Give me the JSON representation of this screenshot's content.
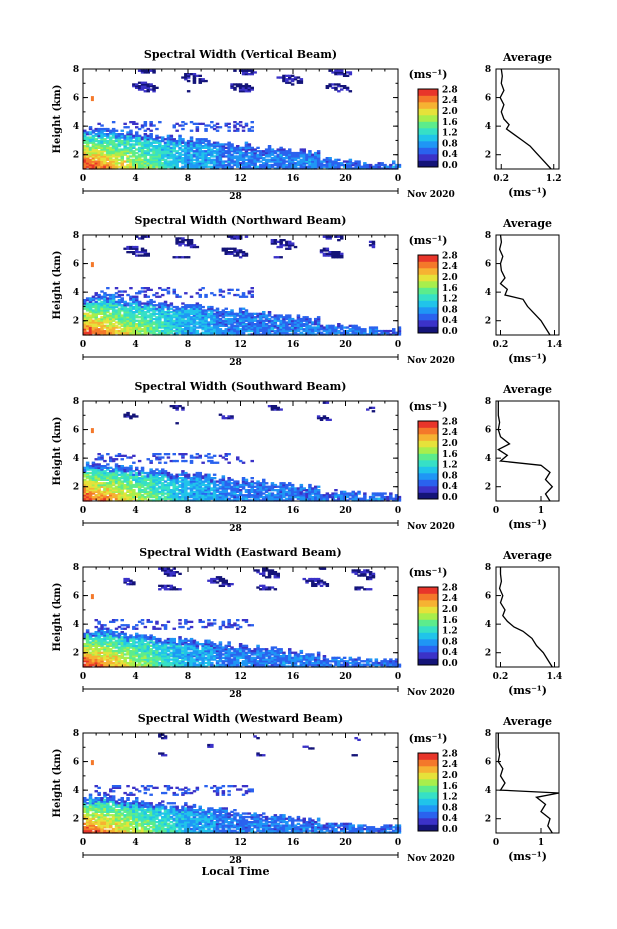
{
  "figure": {
    "xlabel": "Local Time",
    "date_label": "Nov 2020",
    "day_label": "28"
  },
  "colorbar": {
    "unit": "(ms⁻¹)",
    "ticks": [
      "0.0",
      "0.4",
      "0.8",
      "1.2",
      "1.6",
      "2.0",
      "2.4",
      "2.8"
    ],
    "colors": [
      "#141478",
      "#3b32c8",
      "#2a62ee",
      "#1f96f5",
      "#20c4ea",
      "#36e0c6",
      "#5cec8c",
      "#a8ee4c",
      "#e6e23a",
      "#f6b232",
      "#f4782a",
      "#e8352a"
    ]
  },
  "chart_data": [
    {
      "type": "heatmap",
      "title": "Spectral Width (Vertical Beam)",
      "ylabel": "Height (km)",
      "xlim": [
        0,
        24
      ],
      "ylim": [
        1,
        8
      ],
      "xticks": [
        "0",
        "4",
        "8",
        "12",
        "16",
        "20",
        "0"
      ],
      "yticks": [
        "2",
        "4",
        "6",
        "8"
      ],
      "value_range": [
        0.0,
        2.8
      ],
      "profile": {
        "title": "Average",
        "xlabel": "(ms⁻¹)",
        "xticks": [
          "0.2",
          "1.2"
        ],
        "xlim": [
          0.1,
          1.3
        ],
        "ylim": [
          1,
          8
        ],
        "yticks": [
          "2",
          "4",
          "6",
          "8"
        ],
        "points": [
          [
            1.15,
            1.0
          ],
          [
            1.05,
            1.4
          ],
          [
            0.95,
            1.8
          ],
          [
            0.85,
            2.2
          ],
          [
            0.75,
            2.6
          ],
          [
            0.6,
            3.0
          ],
          [
            0.45,
            3.4
          ],
          [
            0.3,
            3.8
          ],
          [
            0.35,
            4.1
          ],
          [
            0.25,
            4.5
          ],
          [
            0.2,
            5.0
          ],
          [
            0.25,
            5.5
          ],
          [
            0.18,
            6.0
          ],
          [
            0.25,
            6.5
          ],
          [
            0.2,
            7.0
          ],
          [
            0.22,
            7.5
          ],
          [
            0.2,
            8.0
          ]
        ]
      }
    },
    {
      "type": "heatmap",
      "title": "Spectral Width (Northward Beam)",
      "ylabel": "Height (km)",
      "xlim": [
        0,
        24
      ],
      "ylim": [
        1,
        8
      ],
      "xticks": [
        "0",
        "4",
        "8",
        "12",
        "16",
        "20",
        "0"
      ],
      "yticks": [
        "2",
        "4",
        "6",
        "8"
      ],
      "value_range": [
        0.0,
        2.8
      ],
      "profile": {
        "title": "Average",
        "xlabel": "(ms⁻¹)",
        "xticks": [
          "0.2",
          "1.4"
        ],
        "xlim": [
          0.1,
          1.5
        ],
        "ylim": [
          1,
          8
        ],
        "yticks": [
          "2",
          "4",
          "6",
          "8"
        ],
        "points": [
          [
            1.3,
            1.0
          ],
          [
            1.2,
            1.5
          ],
          [
            1.1,
            2.0
          ],
          [
            0.95,
            2.5
          ],
          [
            0.8,
            3.0
          ],
          [
            0.7,
            3.5
          ],
          [
            0.3,
            3.8
          ],
          [
            0.35,
            4.2
          ],
          [
            0.2,
            4.6
          ],
          [
            0.3,
            5.0
          ],
          [
            0.22,
            5.5
          ],
          [
            0.2,
            6.0
          ],
          [
            0.25,
            6.5
          ],
          [
            0.18,
            7.0
          ],
          [
            0.22,
            7.5
          ],
          [
            0.2,
            8.0
          ]
        ]
      }
    },
    {
      "type": "heatmap",
      "title": "Spectral Width (Southward Beam)",
      "ylabel": "Height (km)",
      "xlim": [
        0,
        24
      ],
      "ylim": [
        1,
        8
      ],
      "xticks": [
        "0",
        "4",
        "8",
        "12",
        "16",
        "20",
        "0"
      ],
      "yticks": [
        "2",
        "4",
        "6",
        "8"
      ],
      "value_range": [
        0.0,
        2.8
      ],
      "profile": {
        "title": "Average",
        "xlabel": "(ms⁻¹)",
        "xticks": [
          "0",
          "1"
        ],
        "xlim": [
          0,
          1.4
        ],
        "ylim": [
          1,
          8
        ],
        "yticks": [
          "2",
          "4",
          "6",
          "8"
        ],
        "points": [
          [
            1.2,
            1.0
          ],
          [
            1.1,
            1.5
          ],
          [
            1.25,
            2.0
          ],
          [
            1.1,
            2.5
          ],
          [
            1.2,
            3.0
          ],
          [
            1.0,
            3.5
          ],
          [
            0.1,
            3.8
          ],
          [
            0.25,
            4.2
          ],
          [
            0.05,
            4.6
          ],
          [
            0.3,
            5.0
          ],
          [
            0.1,
            5.5
          ],
          [
            0.05,
            6.0
          ],
          [
            0.08,
            6.5
          ],
          [
            0.05,
            7.0
          ],
          [
            0.05,
            8.0
          ]
        ]
      }
    },
    {
      "type": "heatmap",
      "title": "Spectral Width (Eastward Beam)",
      "ylabel": "Height (km)",
      "xlim": [
        0,
        24
      ],
      "ylim": [
        1,
        8
      ],
      "xticks": [
        "0",
        "4",
        "8",
        "12",
        "16",
        "20",
        "0"
      ],
      "yticks": [
        "2",
        "4",
        "6",
        "8"
      ],
      "value_range": [
        0.0,
        2.8
      ],
      "profile": {
        "title": "Average",
        "xlabel": "(ms⁻¹)",
        "xticks": [
          "0.2",
          "1.4"
        ],
        "xlim": [
          0.1,
          1.5
        ],
        "ylim": [
          1,
          8
        ],
        "yticks": [
          "2",
          "4",
          "6",
          "8"
        ],
        "points": [
          [
            1.35,
            1.0
          ],
          [
            1.25,
            1.5
          ],
          [
            1.15,
            2.0
          ],
          [
            1.0,
            2.5
          ],
          [
            0.9,
            3.0
          ],
          [
            0.7,
            3.5
          ],
          [
            0.5,
            3.8
          ],
          [
            0.35,
            4.2
          ],
          [
            0.25,
            4.6
          ],
          [
            0.3,
            5.0
          ],
          [
            0.2,
            5.5
          ],
          [
            0.25,
            6.0
          ],
          [
            0.18,
            6.5
          ],
          [
            0.22,
            7.0
          ],
          [
            0.2,
            7.5
          ],
          [
            0.2,
            8.0
          ]
        ]
      }
    },
    {
      "type": "heatmap",
      "title": "Spectral Width (Westward Beam)",
      "ylabel": "Height (km)",
      "xlim": [
        0,
        24
      ],
      "ylim": [
        1,
        8
      ],
      "xticks": [
        "0",
        "4",
        "8",
        "12",
        "16",
        "20",
        "0"
      ],
      "yticks": [
        "2",
        "4",
        "6",
        "8"
      ],
      "value_range": [
        0.0,
        2.8
      ],
      "profile": {
        "title": "Average",
        "xlabel": "(ms⁻¹)",
        "xticks": [
          "0",
          "1"
        ],
        "xlim": [
          0,
          1.4
        ],
        "ylim": [
          1,
          8
        ],
        "yticks": [
          "2",
          "4",
          "6",
          "8"
        ],
        "points": [
          [
            1.25,
            1.0
          ],
          [
            1.15,
            1.5
          ],
          [
            1.2,
            2.0
          ],
          [
            1.0,
            2.5
          ],
          [
            1.1,
            3.0
          ],
          [
            0.9,
            3.5
          ],
          [
            1.4,
            3.8
          ],
          [
            0.1,
            4.0
          ],
          [
            0.2,
            4.5
          ],
          [
            0.1,
            5.0
          ],
          [
            0.15,
            5.5
          ],
          [
            0.05,
            6.0
          ],
          [
            0.08,
            6.5
          ],
          [
            0.05,
            7.0
          ],
          [
            0.05,
            8.0
          ]
        ]
      }
    }
  ]
}
